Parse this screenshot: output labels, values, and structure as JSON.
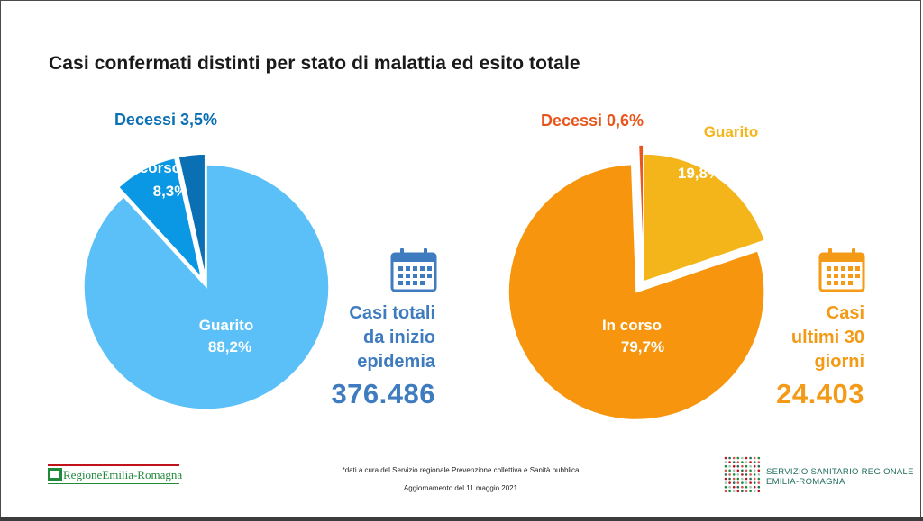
{
  "title": "Casi confermati distinti per stato di malattia ed esito totale",
  "chart_data": [
    {
      "type": "pie",
      "slices": [
        {
          "label": "Guarito",
          "value": 88.2,
          "display": "88,2%",
          "color": "#5bc0f8"
        },
        {
          "label": "In corso",
          "value": 8.3,
          "display": "8,3%",
          "color": "#0a97e3"
        },
        {
          "label": "Decessi",
          "value": 3.5,
          "display": "3,5%",
          "color": "#0b6fb3"
        }
      ],
      "callout_lines": [
        "Casi totali",
        "da inizio",
        "epidemia"
      ],
      "total": "376.486",
      "callout_color": "#3f7bbf"
    },
    {
      "type": "pie",
      "slices": [
        {
          "label": "In corso",
          "value": 79.7,
          "display": "79,7%",
          "color": "#f7960e"
        },
        {
          "label": "Guarito",
          "value": 19.8,
          "display": "19,8%",
          "color": "#f3b519"
        },
        {
          "label": "Decessi",
          "value": 0.6,
          "display": "0,6%",
          "color": "#e8561c"
        }
      ],
      "callout_lines": [
        "Casi",
        "ultimi 30",
        "giorni"
      ],
      "total": "24.403",
      "callout_color": "#f39a16"
    }
  ],
  "footer": {
    "note": "*dati a cura del Servizio regionale Prevenzione collettiva e Sanità pubblica",
    "update": "Aggiornamento del 11 maggio 2021",
    "logo_left": "RegioneEmilia-Romagna",
    "logo_right_1": "SERVIZIO SANITARIO REGIONALE",
    "logo_right_2": "EMILIA-ROMAGNA"
  }
}
